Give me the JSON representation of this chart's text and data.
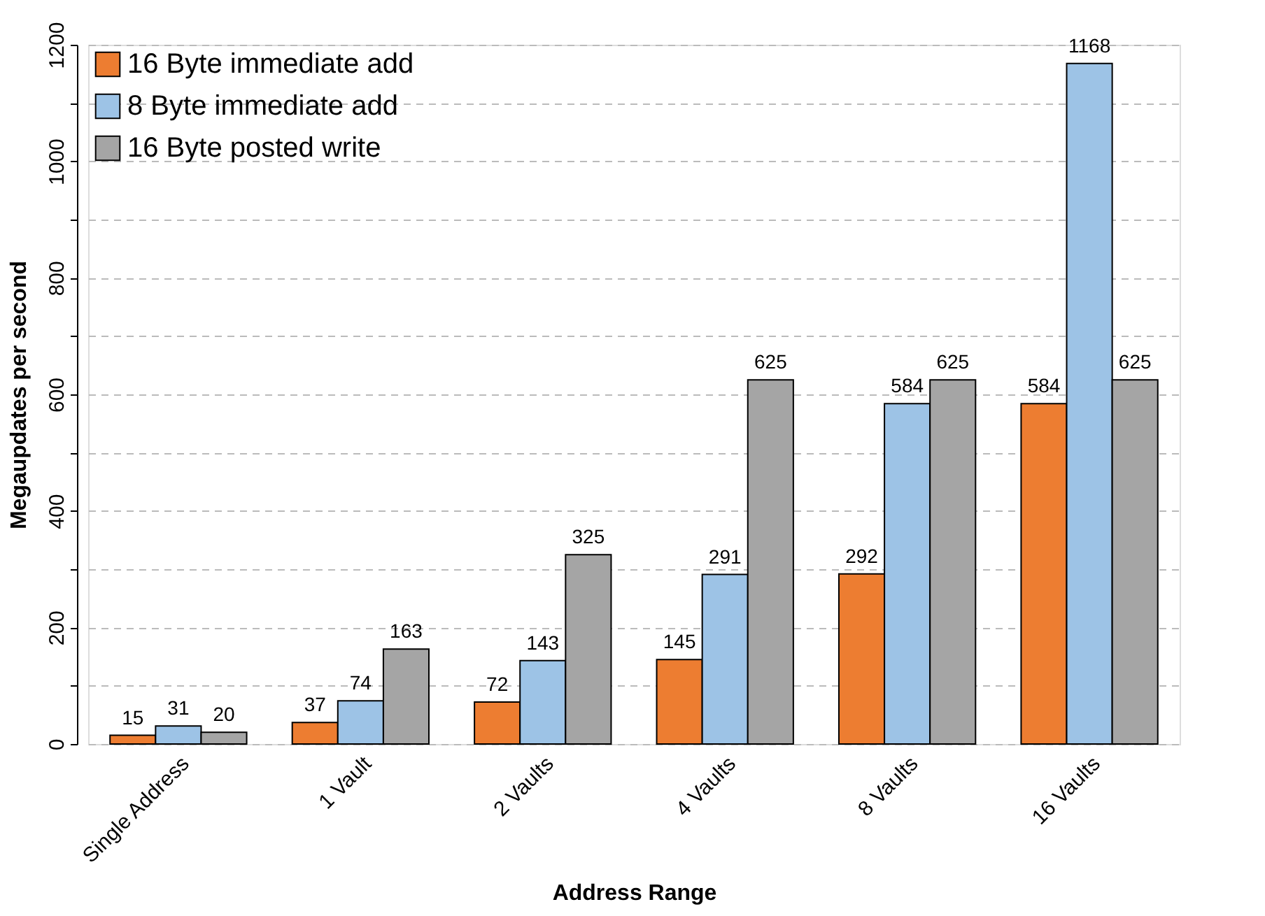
{
  "chart_data": {
    "type": "bar",
    "xlabel": "Address Range",
    "ylabel": "Megaupdates per second",
    "categories": [
      "Single Address",
      "1 Vault",
      "2 Vaults",
      "4 Vaults",
      "8 Vaults",
      "16 Vaults"
    ],
    "series": [
      {
        "name": "16 Byte immediate add",
        "color": "#ed7d31",
        "values": [
          15,
          37,
          72,
          145,
          292,
          584
        ]
      },
      {
        "name": "8 Byte immediate add",
        "color": "#9dc3e6",
        "values": [
          31,
          74,
          143,
          291,
          584,
          1168
        ]
      },
      {
        "name": "16 Byte posted write",
        "color": "#a5a5a5",
        "values": [
          20,
          163,
          325,
          625,
          625,
          625
        ]
      }
    ],
    "ylim": [
      0,
      1200
    ],
    "yticks": [
      0,
      {
        "value": 100,
        "label": null
      },
      200,
      {
        "value": 300,
        "label": null
      },
      400,
      {
        "value": 500,
        "label": null
      },
      600,
      {
        "value": 700,
        "label": null
      },
      800,
      {
        "value": 900,
        "label": null
      },
      1000,
      {
        "value": 1100,
        "label": null
      },
      1200
    ],
    "grid": "y",
    "legend": "top left",
    "data_labels": true
  }
}
